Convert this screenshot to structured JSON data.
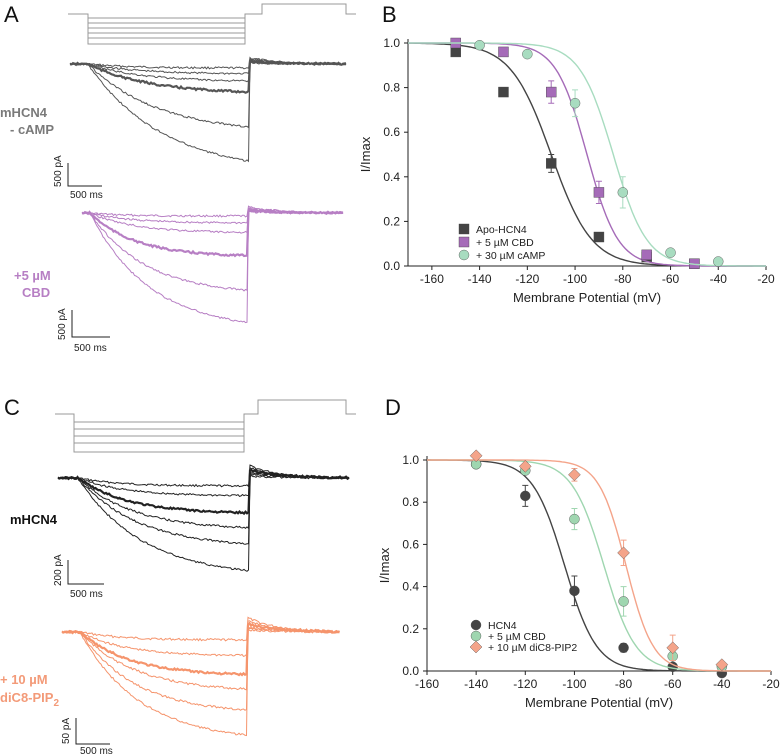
{
  "panels": {
    "A": {
      "label": "A",
      "conditions": [
        {
          "line1": "mHCN4",
          "line2": "- cAMP",
          "color": "#7a7a7a",
          "trace_color": "#555555",
          "amp_scale": "500 pA",
          "time_scale": "500 ms"
        },
        {
          "line1": "+5 µM",
          "line2": "CBD",
          "color": "#b77fc4",
          "trace_color": "#b77fc4",
          "amp_scale": "500 pA",
          "time_scale": "500 ms"
        }
      ]
    },
    "C": {
      "label": "C",
      "conditions": [
        {
          "line1": "mHCN4",
          "line2": "",
          "color": "#111111",
          "trace_color": "#222222",
          "amp_scale": "200 pA",
          "time_scale": "500 ms"
        },
        {
          "line1": "+ 10 µM",
          "line2": "diC8-PIP",
          "sub": "2",
          "color": "#f39a78",
          "trace_color": "#f5946c",
          "amp_scale": "50 pA",
          "time_scale": "500 ms"
        }
      ]
    }
  },
  "chart_data": [
    {
      "panel": "B",
      "type": "scatter",
      "xlabel": "Membrane Potential (mV)",
      "ylabel": "I/Imax",
      "xlim": [
        -170,
        -20
      ],
      "ylim": [
        0,
        1.0
      ],
      "xticks": [
        "-160",
        "-140",
        "-120",
        "-100",
        "-80",
        "-60",
        "-40",
        "-20"
      ],
      "yticks": [
        "0.0",
        "0.2",
        "0.4",
        "0.6",
        "0.8",
        "1.0"
      ],
      "legend_position": "bottom-left",
      "series": [
        {
          "name": "Apo-HCN4",
          "color": "#444444",
          "marker": "square",
          "v_half": -110,
          "slope": 8.5,
          "x": [
            -150,
            -130,
            -110,
            -90,
            -70,
            -50
          ],
          "y": [
            0.96,
            0.78,
            0.46,
            0.13,
            0.04,
            0.01
          ],
          "err": [
            0.01,
            0.02,
            0.04,
            0.02,
            0.01,
            0.01
          ]
        },
        {
          "name": "+ 5 µM CBD",
          "color": "#a56bb8",
          "marker": "square",
          "v_half": -95,
          "slope": 6.5,
          "x": [
            -150,
            -130,
            -110,
            -90,
            -70,
            -50
          ],
          "y": [
            1.0,
            0.96,
            0.78,
            0.33,
            0.05,
            0.01
          ],
          "err": [
            0.01,
            0.01,
            0.05,
            0.05,
            0.01,
            0.01
          ]
        },
        {
          "name": "+ 30 µM cAMP",
          "color": "#a8dcc0",
          "marker": "circle",
          "v_half": -84,
          "slope": 7,
          "x": [
            -140,
            -120,
            -100,
            -80,
            -60,
            -40
          ],
          "y": [
            0.99,
            0.95,
            0.73,
            0.33,
            0.06,
            0.02
          ],
          "err": [
            0.01,
            0.01,
            0.06,
            0.07,
            0.01,
            0.01
          ]
        }
      ]
    },
    {
      "panel": "D",
      "type": "scatter",
      "xlabel": "Membrane Potential (mV)",
      "ylabel": "I/Imax",
      "xlim": [
        -160,
        -20
      ],
      "ylim": [
        0,
        1.0
      ],
      "xticks": [
        "-160",
        "-140",
        "-120",
        "-100",
        "-80",
        "-60",
        "-40",
        "-20"
      ],
      "yticks": [
        "0.0",
        "0.2",
        "0.4",
        "0.6",
        "0.8",
        "1.0"
      ],
      "legend_position": "bottom-left",
      "series": [
        {
          "name": "HCN4",
          "color": "#444444",
          "marker": "circle",
          "v_half": -104,
          "slope": 6.5,
          "x": [
            -140,
            -120,
            -100,
            -80,
            -60,
            -40
          ],
          "y": [
            0.98,
            0.83,
            0.38,
            0.11,
            0.02,
            -0.01
          ],
          "err": [
            0.01,
            0.05,
            0.07,
            0.02,
            0.01,
            0.01
          ]
        },
        {
          "name": "+ 5 µM CBD",
          "color": "#9fd6b0",
          "marker": "circle",
          "v_half": -88,
          "slope": 6.5,
          "x": [
            -140,
            -120,
            -100,
            -80,
            -60,
            -40
          ],
          "y": [
            0.98,
            0.95,
            0.72,
            0.33,
            0.07,
            0.02
          ],
          "err": [
            0.01,
            0.01,
            0.05,
            0.07,
            0.02,
            0.01
          ]
        },
        {
          "name": "+ 10 µM diC8-PIP2",
          "color": "#f4a48a",
          "marker": "diamond",
          "v_half": -79,
          "slope": 5.5,
          "x": [
            -140,
            -120,
            -100,
            -80,
            -60,
            -40
          ],
          "y": [
            1.02,
            0.97,
            0.93,
            0.56,
            0.11,
            0.03
          ],
          "err": [
            0.01,
            0.01,
            0.03,
            0.06,
            0.06,
            0.01
          ]
        }
      ]
    }
  ]
}
